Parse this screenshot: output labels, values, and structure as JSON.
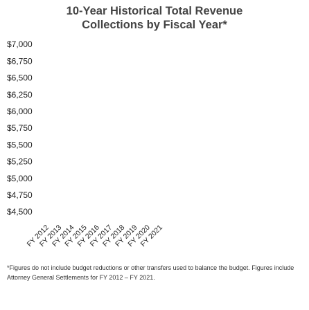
{
  "chart_data": {
    "type": "line",
    "title_line1": "10-Year Historical Total Revenue",
    "title_line2": "Collections by Fiscal Year*",
    "xlabel": "",
    "ylabel": "",
    "x": [
      "FY 2012",
      "FY 2013",
      "FY 2014",
      "FY 2015",
      "FY 2016",
      "FY 2017",
      "FY 2018",
      "FY 2019",
      "FY 2020",
      "FY 2021"
    ],
    "y_ticks": [
      "$7,000",
      "$6,750",
      "$6,500",
      "$6,250",
      "$6,000",
      "$5,750",
      "$5,500",
      "$5,250",
      "$5,000",
      "$4,750",
      "$4,500"
    ],
    "ylim": [
      4500,
      7000
    ],
    "series": [],
    "grid": false,
    "legend": "none"
  },
  "footnote": "*Figures do not include budget reductions or other transfers used to balance the budget. Figures include Attorney General Settlements for FY 2012 – FY 2021."
}
